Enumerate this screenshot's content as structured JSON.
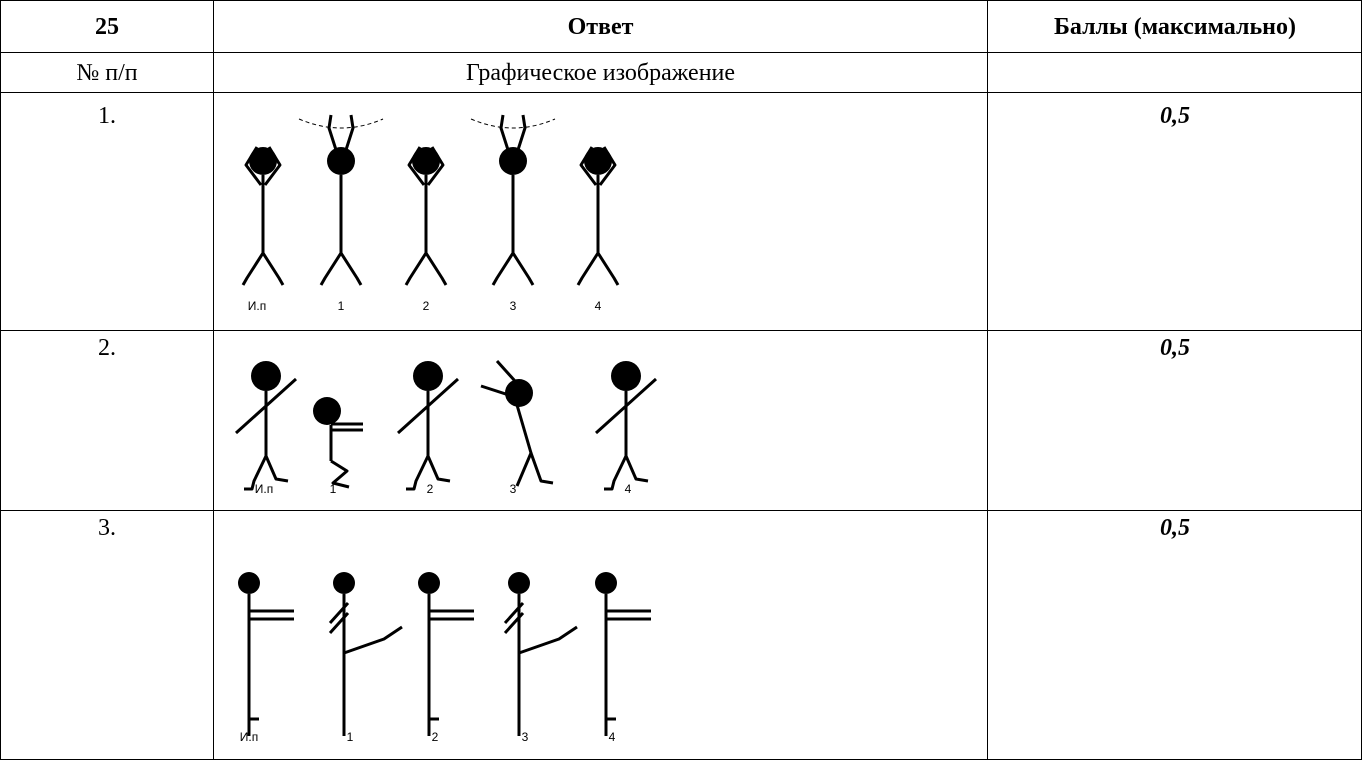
{
  "table": {
    "header": [
      "25",
      "Ответ",
      "Баллы (максимально)"
    ],
    "subheader": [
      "№ п/п",
      "Графическое изображение"
    ],
    "rows": [
      {
        "number": "1.",
        "score": "0,5",
        "labels": [
          "И.п",
          "1",
          "2",
          "3",
          "4"
        ]
      },
      {
        "number": "2.",
        "score": "0,5",
        "labels": [
          "И.п",
          "1",
          "2",
          "3",
          "4"
        ]
      },
      {
        "number": "3.",
        "score": "0,5",
        "labels": [
          "И.п",
          "1",
          "2",
          "3",
          "4"
        ]
      }
    ]
  }
}
